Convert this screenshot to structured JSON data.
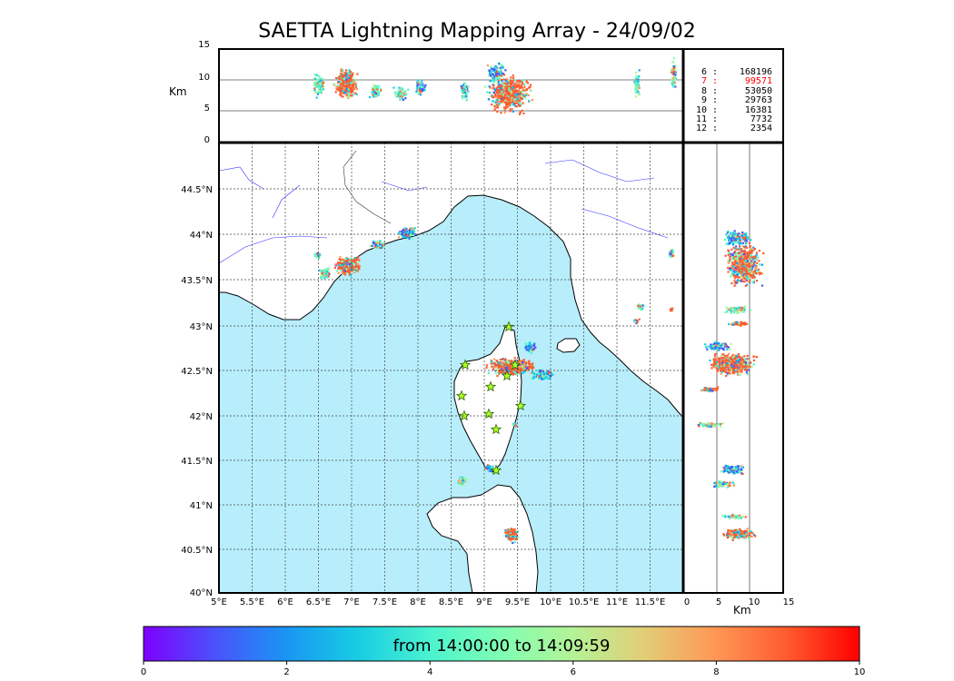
{
  "title": "SAETTA Lightning Mapping Array - 24/09/02",
  "altitude_panel": {
    "ylabel": "Km",
    "yticks": [
      "15",
      "10",
      "5",
      "0"
    ]
  },
  "side_panel": {
    "xlabel": "Km",
    "xticks": [
      "0",
      "5",
      "10",
      "15"
    ]
  },
  "map": {
    "lon_ticks": [
      "5°E",
      "5.5°E",
      "6°E",
      "6.5°E",
      "7°E",
      "7.5°E",
      "8°E",
      "8.5°E",
      "9°E",
      "9.5°E",
      "10°E",
      "10.5°E",
      "11°E",
      "11.5°E"
    ],
    "lat_ticks": [
      "44.5°N",
      "44°N",
      "43.5°N",
      "43°N",
      "42.5°N",
      "42°N",
      "41.5°N",
      "41°N",
      "40.5°N",
      "40°N"
    ],
    "sea_color": "#b8eefb",
    "land_color": "#ffffff"
  },
  "stations": {
    "rows": [
      {
        "level": "6",
        "count": "168196",
        "highlight": false
      },
      {
        "level": "7",
        "count": "99571",
        "highlight": true
      },
      {
        "level": "8",
        "count": "53050",
        "highlight": false
      },
      {
        "level": "9",
        "count": "29763",
        "highlight": false
      },
      {
        "level": "10",
        "count": "16381",
        "highlight": false
      },
      {
        "level": "11",
        "count": "7732",
        "highlight": false
      },
      {
        "level": "12",
        "count": "2354",
        "highlight": false
      }
    ],
    "separator": ":",
    "highlight_color": "#ff0000"
  },
  "colorbar": {
    "label": "from 14:00:00 to 14:09:59",
    "ticks": [
      "0",
      "2",
      "4",
      "6",
      "8",
      "10"
    ],
    "colors": [
      "#7f00ff",
      "#4a52fb",
      "#1996f3",
      "#18cde3",
      "#4bf3cf",
      "#80feb3",
      "#b4f396",
      "#e2cd76",
      "#ff9755",
      "#ff5a2e",
      "#ff0000"
    ]
  }
}
